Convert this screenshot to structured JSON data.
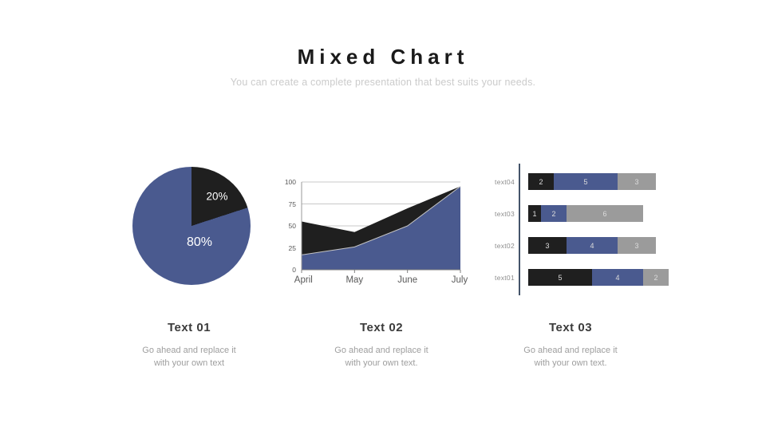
{
  "slide": {
    "title": "Mixed Chart",
    "subtitle": "You can create a complete presentation that best suits your needs."
  },
  "colors": {
    "blue": "#4A5A8F",
    "black": "#1F1F1F",
    "gray": "#9B9B9B",
    "bar_axis": "#44546A",
    "grid": "#C8C8C8",
    "axis_text": "#595959",
    "blue_edge": "#C4C4C4"
  },
  "chart_data": [
    {
      "type": "pie",
      "labels": [
        "20%",
        "80%"
      ],
      "values": [
        20,
        80
      ],
      "colors": [
        "#1F1F1F",
        "#4A5A8F"
      ],
      "start_angle_deg": 0,
      "direction": "clockwise"
    },
    {
      "type": "area",
      "categories": [
        "April",
        "May",
        "June",
        "July"
      ],
      "series": [
        {
          "name": "black-area",
          "values": [
            55,
            43,
            70,
            95
          ],
          "color": "#1F1F1F"
        },
        {
          "name": "blue-area",
          "values": [
            17,
            26,
            50,
            95
          ],
          "color": "#4A5A8F"
        }
      ],
      "ylim": [
        0,
        100
      ],
      "yticks": [
        0,
        25,
        50,
        75,
        100
      ],
      "grid": true,
      "legend": "none"
    },
    {
      "type": "stacked-bar-horizontal",
      "categories": [
        "text04",
        "text03",
        "text02",
        "text01"
      ],
      "series": [
        {
          "name": "black-segment",
          "values": [
            2,
            1,
            3,
            5
          ],
          "color": "#1F1F1F"
        },
        {
          "name": "blue-segment",
          "values": [
            5,
            2,
            4,
            4
          ],
          "color": "#4A5A8F"
        },
        {
          "name": "gray-segment",
          "values": [
            3,
            6,
            3,
            2
          ],
          "color": "#9B9B9B"
        }
      ],
      "totals": [
        10,
        9,
        10,
        11
      ]
    }
  ],
  "columns": [
    {
      "heading": "Text 01",
      "line1": "Go ahead and replace it",
      "line2": "with  your own text"
    },
    {
      "heading": "Text 02",
      "line1": "Go ahead and replace it",
      "line2": "with  your own text."
    },
    {
      "heading": "Text 03",
      "line1": "Go ahead and replace it",
      "line2": "with  your own text."
    }
  ]
}
